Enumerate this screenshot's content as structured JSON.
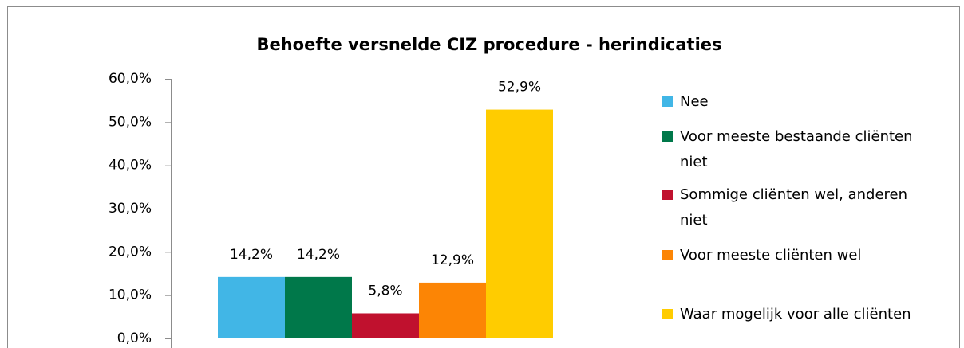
{
  "chart_data": {
    "type": "bar",
    "title": "Behoefte versnelde CIZ procedure - herindicaties",
    "categories": [
      null
    ],
    "series": [
      {
        "name": "Nee",
        "color": "#41b6e6",
        "values": [
          14.2
        ],
        "value_labels": [
          "14,2%"
        ]
      },
      {
        "name": "Voor meeste bestaande cliënten niet",
        "color": "#00784a",
        "values": [
          14.2
        ],
        "value_labels": [
          "14,2%"
        ]
      },
      {
        "name": "Sommige cliënten wel, anderen niet",
        "color": "#c0112e",
        "values": [
          5.8
        ],
        "value_labels": [
          "5,8%"
        ]
      },
      {
        "name": "Voor meeste cliënten wel",
        "color": "#fc8505",
        "values": [
          12.9
        ],
        "value_labels": [
          "12,9%"
        ]
      },
      {
        "name": "Waar mogelijk voor alle cliënten",
        "color": "#ffcc00",
        "values": [
          52.9
        ],
        "value_labels": [
          "52,9%"
        ]
      }
    ],
    "ylim": [
      0,
      60
    ],
    "yticks": [
      {
        "value": 0,
        "label": "0,0%"
      },
      {
        "value": 10,
        "label": "10,0%"
      },
      {
        "value": 20,
        "label": "20,0%"
      },
      {
        "value": 30,
        "label": "30,0%"
      },
      {
        "value": 40,
        "label": "40,0%"
      },
      {
        "value": 50,
        "label": "50,0%"
      },
      {
        "value": 60,
        "label": "60,0%"
      }
    ],
    "legend": "right"
  }
}
